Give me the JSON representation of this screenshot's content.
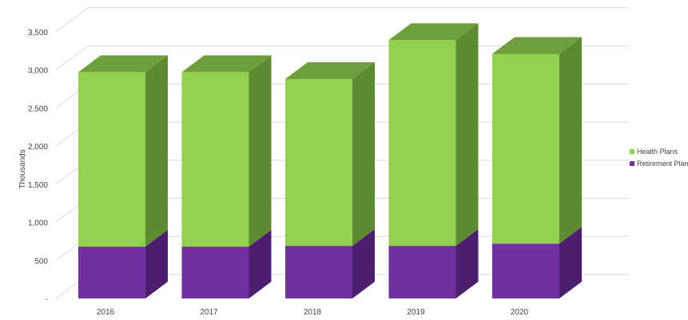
{
  "chart_data": {
    "type": "bar",
    "stacked": true,
    "three_d": true,
    "categories": [
      "2016",
      "2017",
      "2018",
      "2019",
      "2020"
    ],
    "series": [
      {
        "name": "Retirement Plans",
        "values": [
          680,
          680,
          690,
          690,
          720
        ]
      },
      {
        "name": "Health Plans",
        "values": [
          2290,
          2290,
          2190,
          2700,
          2490
        ]
      }
    ],
    "title": "",
    "xlabel": "",
    "ylabel": "Thousands",
    "ylim": [
      0,
      3500
    ],
    "y_ticks": [
      "-",
      "500",
      "1,000",
      "1,500",
      "2,000",
      "2,500",
      "3,000",
      "3,500"
    ],
    "grid": true,
    "legend_position": "right"
  },
  "colors": {
    "Retirement Plans": {
      "front": "#7030a0",
      "side": "#4b1e6e",
      "top": "#5f2890"
    },
    "Health Plans": {
      "front": "#92d050",
      "side": "#5e8a31",
      "top": "#6f9e3c"
    },
    "grid": "#d9d9d9"
  }
}
